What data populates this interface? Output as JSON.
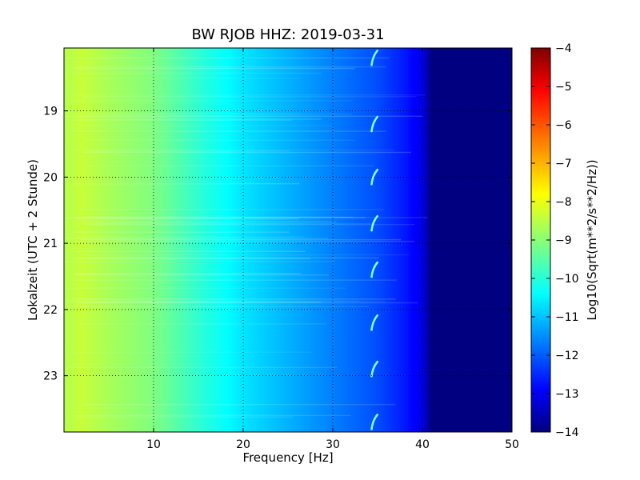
{
  "chart_data": {
    "type": "heatmap",
    "title": "BW RJOB HHZ: 2019-03-31",
    "xlabel": "Frequency [Hz]",
    "ylabel": "Lokalzeit (UTC + 2 Stunde)",
    "xlim": [
      0,
      50
    ],
    "ylim": [
      23.85,
      18.05
    ],
    "x_ticks": [
      10,
      20,
      30,
      40,
      50
    ],
    "x_tick_labels": [
      "10",
      "20",
      "30",
      "40",
      "50"
    ],
    "y_ticks": [
      19,
      20,
      21,
      22,
      23
    ],
    "y_tick_labels": [
      "19",
      "20",
      "21",
      "22",
      "23"
    ],
    "grid": true,
    "colormap": "jet",
    "colorbar": {
      "label": "Log10(Sqrt(m**2/s**2/Hz))",
      "min": -14,
      "max": -4,
      "ticks": [
        -4,
        -5,
        -6,
        -7,
        -8,
        -9,
        -10,
        -11,
        -12,
        -13,
        -14
      ],
      "tick_labels": [
        "−4",
        "−5",
        "−6",
        "−7",
        "−8",
        "−9",
        "−10",
        "−11",
        "−12",
        "−13",
        "−14"
      ]
    },
    "spectral_profile": {
      "frequency_hz": [
        0,
        2,
        5,
        10,
        15,
        20,
        25,
        30,
        35,
        38,
        40,
        41,
        45,
        50
      ],
      "log_amplitude": [
        -8.5,
        -8.3,
        -8.6,
        -9.0,
        -9.8,
        -10.5,
        -11.0,
        -11.5,
        -12.0,
        -12.5,
        -13.0,
        -14.0,
        -14.0,
        -14.0
      ]
    },
    "recurring_feature": {
      "frequency_hz": 34.5,
      "hours": [
        18.2,
        19.2,
        20.0,
        20.7,
        21.4,
        22.2,
        22.9,
        23.7
      ]
    }
  }
}
